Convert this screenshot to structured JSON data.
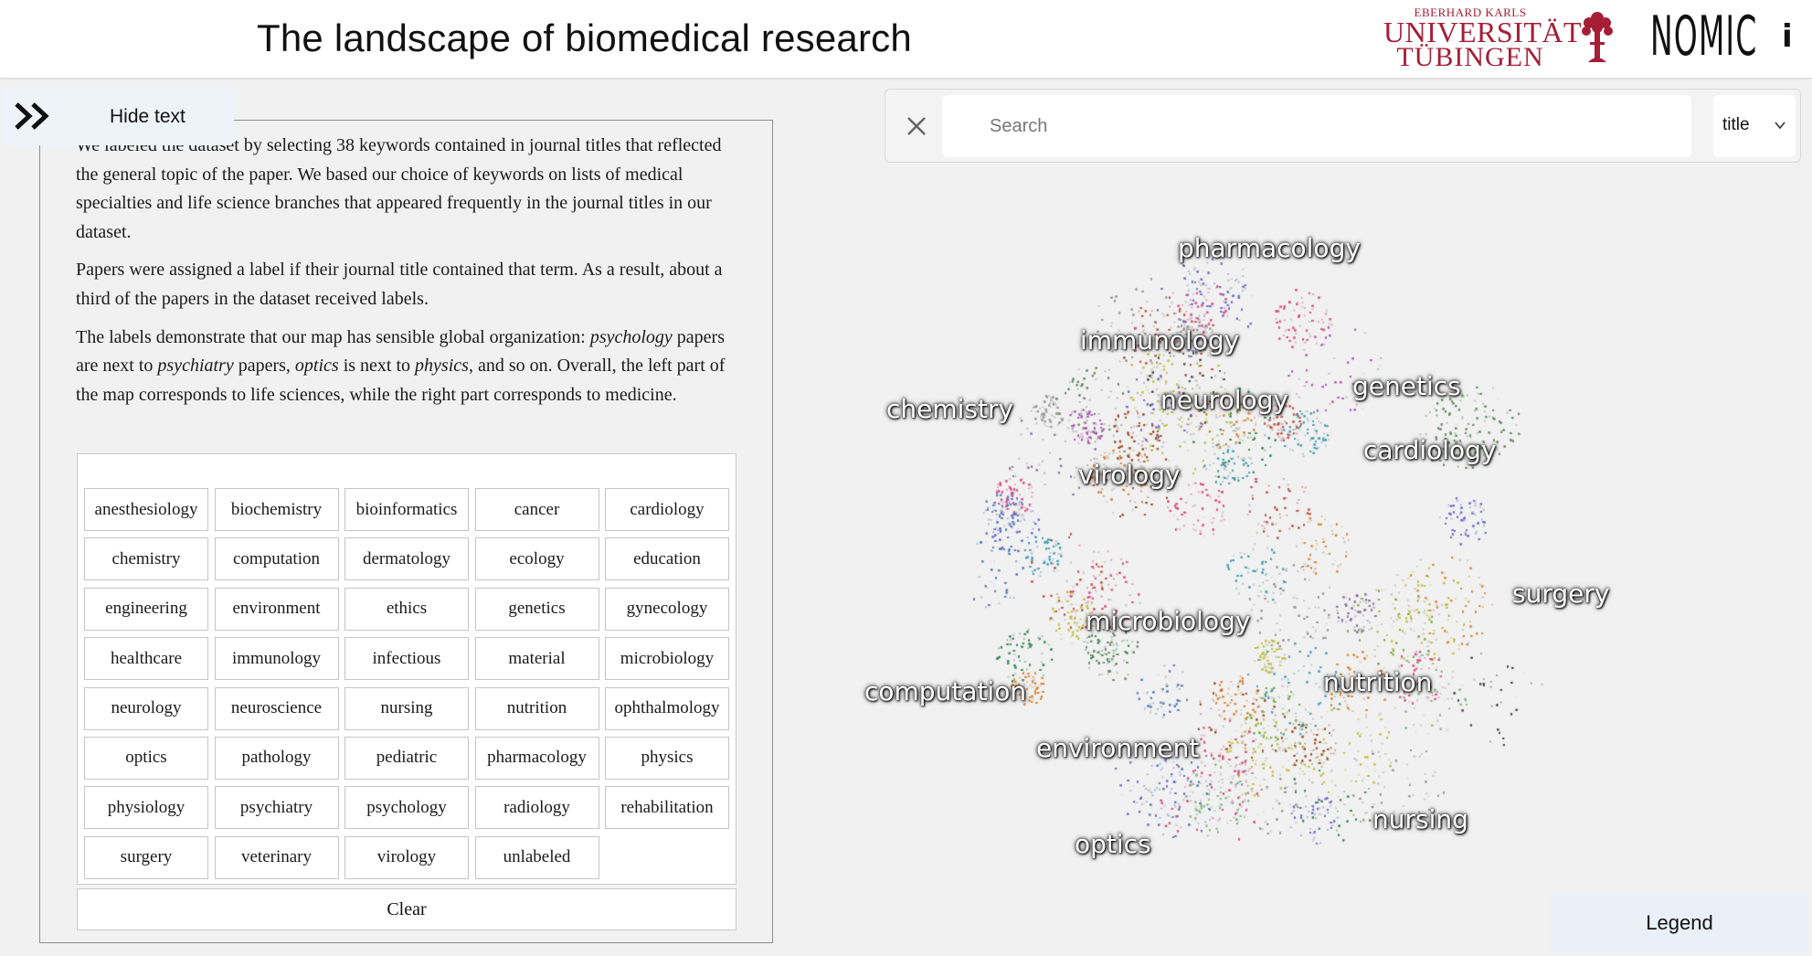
{
  "header": {
    "title": "The landscape of biomedical research",
    "university": {
      "line1": "EBERHARD KARLS",
      "line2": "UNIVERSITÄT",
      "line3": "TÜBINGEN"
    },
    "nomic": "NOMIC",
    "info": "i"
  },
  "panel": {
    "toggle_label": "Hide text",
    "paragraphs": [
      "We labeled the dataset by selecting 38 keywords contained in journal titles that reflected the general topic of the paper. We based our choice of keywords on lists of medical specialties and life science branches that appeared frequently in the journal titles in our dataset.",
      "Papers were assigned a label if their journal title contained that term. As a result, about a third of the papers in the dataset received labels."
    ],
    "p3": {
      "t1": "The labels demonstrate that our map has sensible global organization: ",
      "i1": "psychology",
      "t2": " papers are next to ",
      "i2": "psychiatry",
      "t3": " papers, ",
      "i3": "optics",
      "t4": " is next to ",
      "i4": "physics",
      "t5": ", and so on. Overall, the left part of the map corresponds to life sciences, while the right part corresponds to medicine."
    },
    "tags": [
      "anesthesiology",
      "biochemistry",
      "bioinformatics",
      "cancer",
      "cardiology",
      "chemistry",
      "computation",
      "dermatology",
      "ecology",
      "education",
      "engineering",
      "environment",
      "ethics",
      "genetics",
      "gynecology",
      "healthcare",
      "immunology",
      "infectious",
      "material",
      "microbiology",
      "neurology",
      "neuroscience",
      "nursing",
      "nutrition",
      "ophthalmology",
      "optics",
      "pathology",
      "pediatric",
      "pharmacology",
      "physics",
      "physiology",
      "psychiatry",
      "psychology",
      "radiology",
      "rehabilitation",
      "surgery",
      "veterinary",
      "virology",
      "unlabeled"
    ],
    "clear_label": "Clear"
  },
  "search": {
    "placeholder": "Search",
    "field": "title"
  },
  "map": {
    "labels": [
      "pharmacology",
      "immunology",
      "chemistry",
      "genetics",
      "neurology",
      "cardiology",
      "virology",
      "surgery",
      "microbiology",
      "nutrition",
      "computation",
      "environment",
      "nursing",
      "optics"
    ]
  },
  "legend_label": "Legend"
}
